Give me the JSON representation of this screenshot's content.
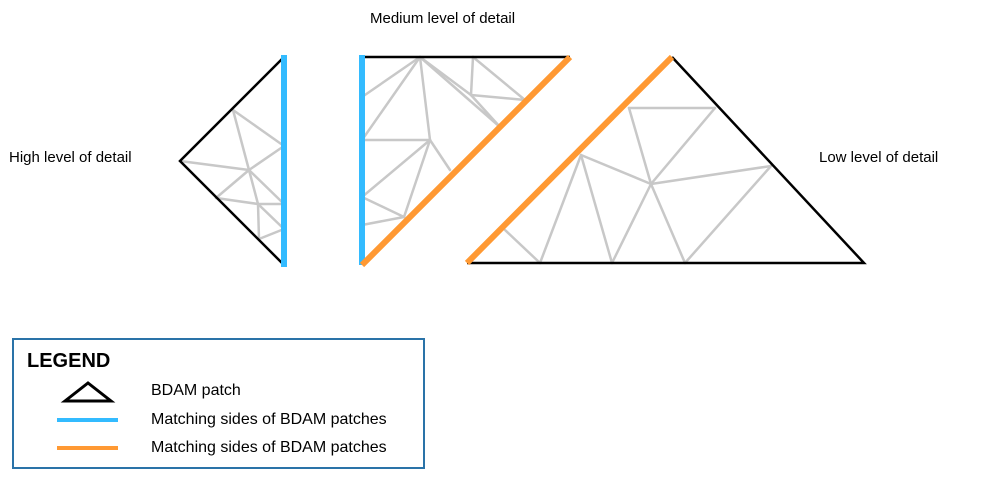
{
  "labels": {
    "medium": "Medium level of detail",
    "high": "High level of detail",
    "low": "Low level of detail"
  },
  "legend": {
    "title": "LEGEND",
    "items": [
      {
        "label": "BDAM patch",
        "icon": "triangle-outline-icon",
        "color": "#000000"
      },
      {
        "label": "Matching sides of BDAM patches",
        "icon": "blue-line-icon",
        "color": "#33bbff"
      },
      {
        "label": "Matching sides of BDAM patches",
        "icon": "orange-line-icon",
        "color": "#ff9933"
      }
    ]
  },
  "colors": {
    "patch_outline": "#000000",
    "mesh": "#c8c8c8",
    "blue_edge": "#33bbff",
    "orange_edge": "#ff9933",
    "legend_border": "#2a73a8"
  }
}
